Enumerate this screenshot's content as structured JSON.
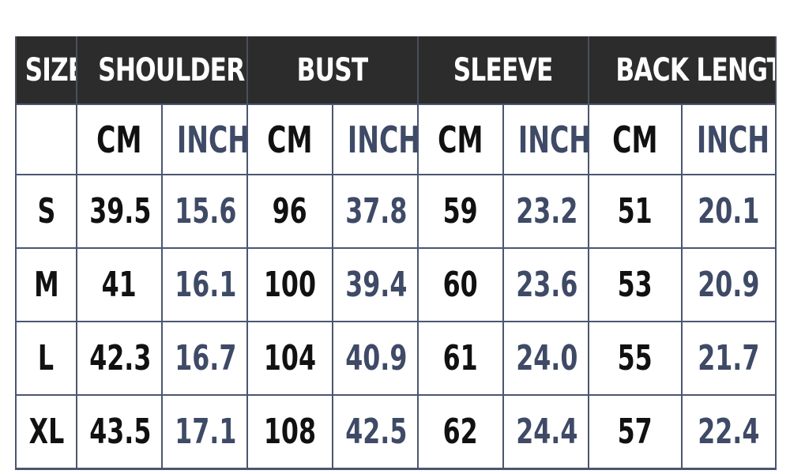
{
  "table": {
    "headers": {
      "size": "SIZE",
      "groups": [
        "SHOULDER",
        "BUST",
        "SLEEVE",
        "BACK LENGTH"
      ]
    },
    "units": {
      "size": "",
      "values": [
        "CM",
        "INCH",
        "CM",
        "INCH",
        "CM",
        "INCH",
        "CM",
        "INCH"
      ]
    },
    "rows": [
      {
        "size": "S",
        "values": [
          "39.5",
          "15.6",
          "96",
          "37.8",
          "59",
          "23.2",
          "51",
          "20.1"
        ]
      },
      {
        "size": "M",
        "values": [
          "41",
          "16.1",
          "100",
          "39.4",
          "60",
          "23.6",
          "53",
          "20.9"
        ]
      },
      {
        "size": "L",
        "values": [
          "42.3",
          "16.7",
          "104",
          "40.9",
          "61",
          "24.0",
          "55",
          "21.7"
        ]
      },
      {
        "size": "XL",
        "values": [
          "43.5",
          "17.1",
          "108",
          "42.5",
          "62",
          "24.4",
          "57",
          "22.4"
        ]
      }
    ]
  },
  "colors": {
    "header_bg": "#2c2c2c",
    "header_text": "#ffffff",
    "cm_text": "#111111",
    "inch_text": "#3e4a66",
    "border": "#4b5670"
  }
}
